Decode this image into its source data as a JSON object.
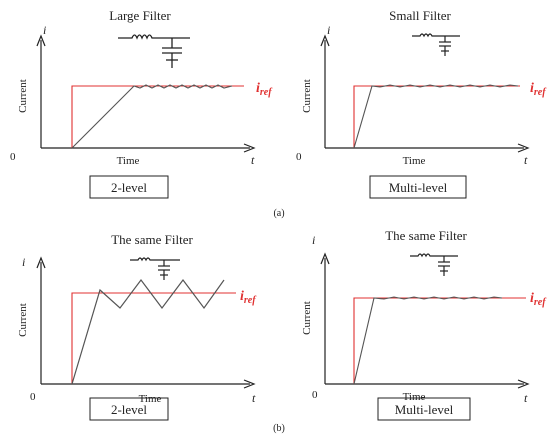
{
  "colors": {
    "reference": "#e03030",
    "waveform": "#555555",
    "axis": "#222222"
  },
  "panels": {
    "a_left": {
      "title": "Large Filter",
      "level": "2-level"
    },
    "a_right": {
      "title": "Small Filter",
      "level": "Multi-level"
    },
    "b_left": {
      "title": "The same Filter",
      "level": "2-level"
    },
    "b_right": {
      "title": "The same Filter",
      "level": "Multi-level"
    }
  },
  "axes": {
    "y_symbol": "i",
    "y_label": "Current",
    "x_symbol": "t",
    "x_label": "Time",
    "origin": "0",
    "ref_symbol": "i",
    "ref_subscript": "ref"
  },
  "captions": {
    "a": "(a)",
    "b": "(b)"
  }
}
